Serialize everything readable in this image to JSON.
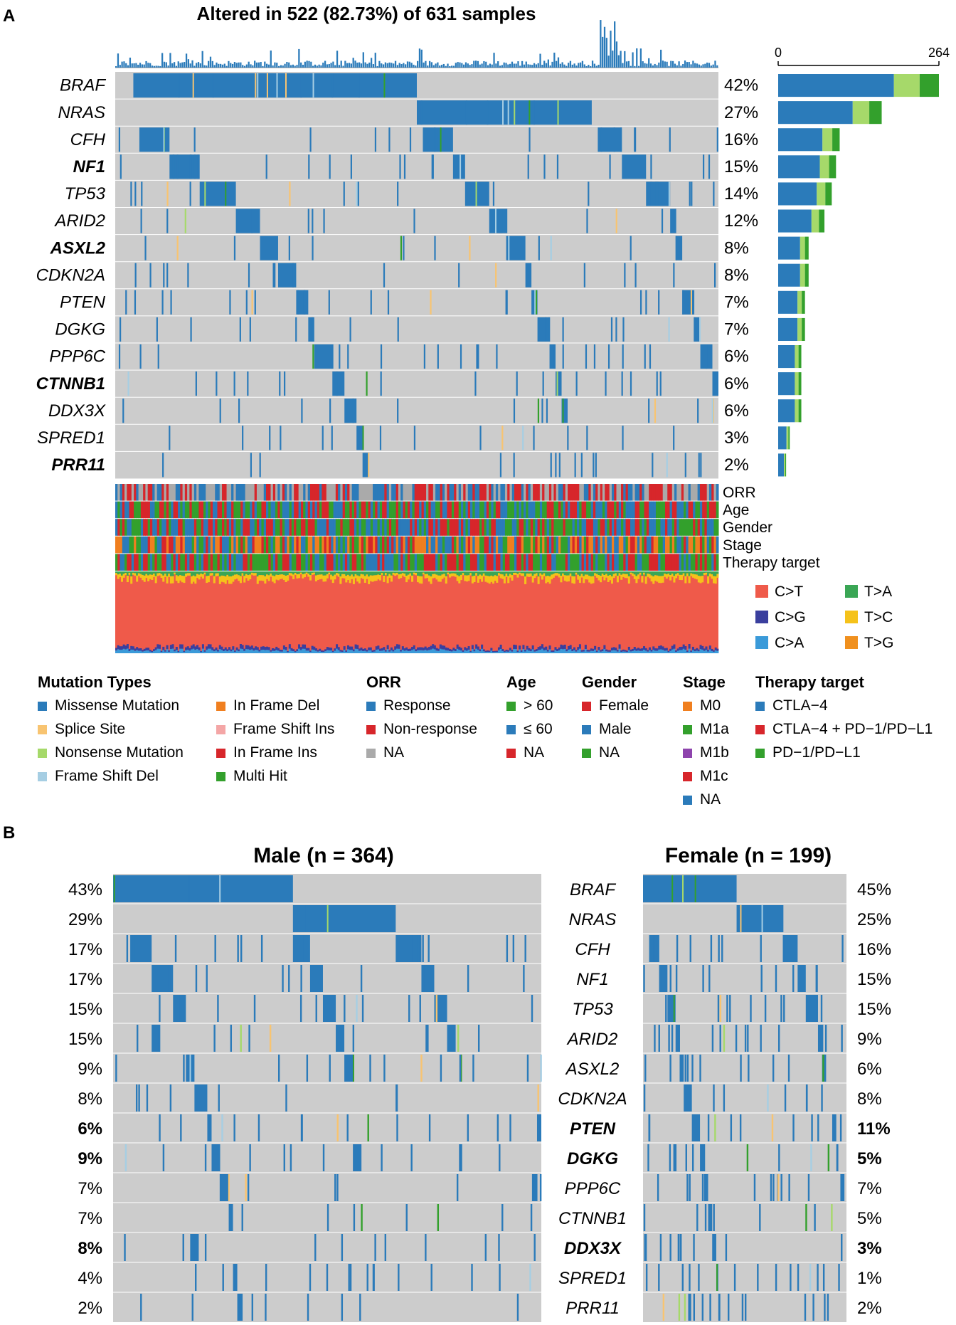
{
  "panels": {
    "a_label": "A",
    "b_label": "B"
  },
  "colors": {
    "missense": "#2b7bba",
    "splice": "#f8c471",
    "nonsense": "#a6d96a",
    "frameshift_del": "#a6cee3",
    "inframe_del": "#f07f1f",
    "frameshift_ins": "#f4a6a6",
    "inframe_ins": "#d7262b",
    "multi_hit": "#33a02c",
    "background": "#cccccc",
    "ct": "#ef5a4a",
    "cg": "#3a3f9e",
    "ca": "#3a9ad9",
    "ta": "#3aa655",
    "tc": "#f5c21a",
    "tg": "#f0901e",
    "grey": "#aaaaaa",
    "purple": "#8e44ad"
  },
  "panel_a": {
    "title": "Altered in 522 (82.73%) of 631 samples",
    "bar_axis": {
      "min": "0",
      "max": "264"
    },
    "genes": [
      {
        "name": "BRAF",
        "pct": "42%",
        "bold": false
      },
      {
        "name": "NRAS",
        "pct": "27%",
        "bold": false
      },
      {
        "name": "CFH",
        "pct": "16%",
        "bold": false
      },
      {
        "name": "NF1",
        "pct": "15%",
        "bold": true
      },
      {
        "name": "TP53",
        "pct": "14%",
        "bold": false
      },
      {
        "name": "ARID2",
        "pct": "12%",
        "bold": false
      },
      {
        "name": "ASXL2",
        "pct": "8%",
        "bold": true
      },
      {
        "name": "CDKN2A",
        "pct": "8%",
        "bold": false
      },
      {
        "name": "PTEN",
        "pct": "7%",
        "bold": false
      },
      {
        "name": "DGKG",
        "pct": "7%",
        "bold": false
      },
      {
        "name": "PPP6C",
        "pct": "6%",
        "bold": false
      },
      {
        "name": "CTNNB1",
        "pct": "6%",
        "bold": true
      },
      {
        "name": "DDX3X",
        "pct": "6%",
        "bold": false
      },
      {
        "name": "SPRED1",
        "pct": "3%",
        "bold": false
      },
      {
        "name": "PRR11",
        "pct": "2%",
        "bold": true
      }
    ],
    "annotation_tracks": [
      "ORR",
      "Age",
      "Gender",
      "Stage",
      "Therapy target"
    ],
    "titv_legend": [
      "C>T",
      "T>A",
      "C>G",
      "T>C",
      "C>A",
      "T>G"
    ]
  },
  "legend": {
    "mutation_types": {
      "title": "Mutation Types",
      "col1": [
        "Missense Mutation",
        "Splice Site",
        "Nonsense Mutation",
        "Frame Shift Del"
      ],
      "col2": [
        "In Frame Del",
        "Frame Shift Ins",
        "In Frame Ins",
        "Multi Hit"
      ]
    },
    "orr": {
      "title": "ORR",
      "items": [
        "Response",
        "Non-response",
        "NA"
      ]
    },
    "age": {
      "title": "Age",
      "items": [
        "> 60",
        "≤ 60",
        "NA"
      ]
    },
    "gender": {
      "title": "Gender",
      "items": [
        "Female",
        "Male",
        "NA"
      ]
    },
    "stage": {
      "title": "Stage",
      "items": [
        "M0",
        "M1a",
        "M1b",
        "M1c",
        "NA"
      ]
    },
    "therapy": {
      "title": "Therapy target",
      "items": [
        "CTLA−4",
        "CTLA−4 + PD−1/PD−L1",
        "PD−1/PD−L1"
      ]
    }
  },
  "panel_b": {
    "male_title": "Male (n = 364)",
    "female_title": "Female (n = 199)",
    "genes": [
      "BRAF",
      "NRAS",
      "CFH",
      "NF1",
      "TP53",
      "ARID2",
      "ASXL2",
      "CDKN2A",
      "PTEN",
      "DGKG",
      "PPP6C",
      "CTNNB1",
      "DDX3X",
      "SPRED1",
      "PRR11"
    ],
    "bold_genes": [
      "PTEN",
      "DGKG",
      "DDX3X"
    ],
    "male_pct": [
      "43%",
      "29%",
      "17%",
      "17%",
      "15%",
      "15%",
      "9%",
      "8%",
      "6%",
      "9%",
      "7%",
      "7%",
      "8%",
      "4%",
      "2%"
    ],
    "female_pct": [
      "45%",
      "25%",
      "16%",
      "15%",
      "15%",
      "9%",
      "6%",
      "8%",
      "11%",
      "5%",
      "7%",
      "5%",
      "3%",
      "1%",
      "2%"
    ]
  },
  "chart_data": [
    {
      "type": "heatmap",
      "title": "Altered in 522 (82.73%) of 631 samples",
      "description_kind": "oncoplot",
      "samples": 631,
      "altered": 522,
      "categories": [
        "BRAF",
        "NRAS",
        "CFH",
        "NF1",
        "TP53",
        "ARID2",
        "ASXL2",
        "CDKN2A",
        "PTEN",
        "DGKG",
        "PPP6C",
        "CTNNB1",
        "DDX3X",
        "SPRED1",
        "PRR11"
      ],
      "values": [
        42,
        27,
        16,
        15,
        14,
        12,
        8,
        8,
        7,
        7,
        6,
        6,
        6,
        3,
        2
      ],
      "bar_counts": [
        264,
        170,
        101,
        95,
        88,
        76,
        50,
        50,
        44,
        44,
        38,
        38,
        38,
        19,
        13
      ],
      "xlim": [
        0,
        264
      ]
    },
    {
      "type": "heatmap",
      "title": "Male (n = 364)",
      "categories": [
        "BRAF",
        "NRAS",
        "CFH",
        "NF1",
        "TP53",
        "ARID2",
        "ASXL2",
        "CDKN2A",
        "PTEN",
        "DGKG",
        "PPP6C",
        "CTNNB1",
        "DDX3X",
        "SPRED1",
        "PRR11"
      ],
      "values": [
        43,
        29,
        17,
        17,
        15,
        15,
        9,
        8,
        6,
        9,
        7,
        7,
        8,
        4,
        2
      ]
    },
    {
      "type": "heatmap",
      "title": "Female (n = 199)",
      "categories": [
        "BRAF",
        "NRAS",
        "CFH",
        "NF1",
        "TP53",
        "ARID2",
        "ASXL2",
        "CDKN2A",
        "PTEN",
        "DGKG",
        "PPP6C",
        "CTNNB1",
        "DDX3X",
        "SPRED1",
        "PRR11"
      ],
      "values": [
        45,
        25,
        16,
        15,
        15,
        9,
        6,
        8,
        11,
        5,
        7,
        5,
        3,
        1,
        2
      ]
    }
  ]
}
